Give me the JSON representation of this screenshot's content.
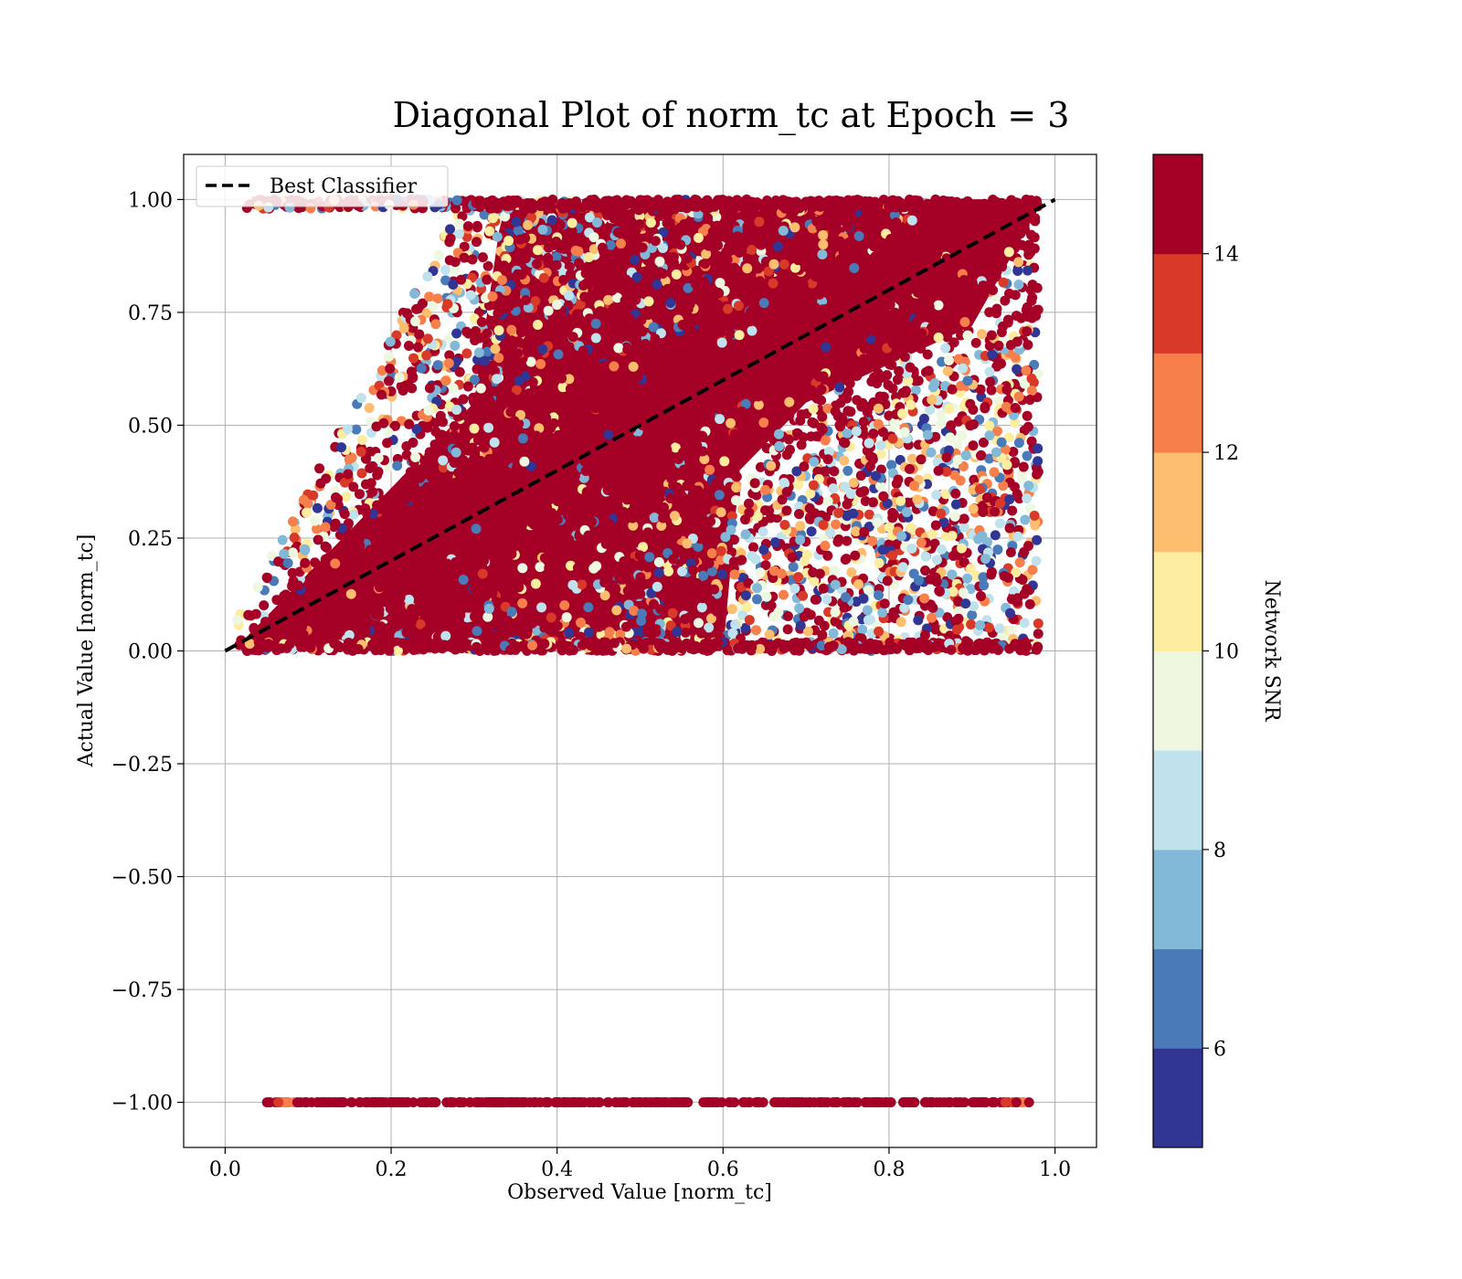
{
  "chart_data": {
    "type": "scatter",
    "title": "Diagonal Plot of norm_tc at Epoch = 3",
    "xlabel": "Observed Value [norm_tc]",
    "ylabel": "Actual Value [norm_tc]",
    "xlim": [
      -0.05,
      1.05
    ],
    "ylim": [
      -1.1,
      1.1
    ],
    "xticks": [
      0.0,
      0.2,
      0.4,
      0.6,
      0.8,
      1.0
    ],
    "xtick_labels": [
      "0.0",
      "0.2",
      "0.4",
      "0.6",
      "0.8",
      "1.0"
    ],
    "yticks": [
      1.0,
      0.75,
      0.5,
      0.25,
      0.0,
      -0.25,
      -0.5,
      -0.75,
      -1.0
    ],
    "ytick_labels": [
      "1.00",
      "0.75",
      "0.50",
      "0.25",
      "0.00",
      "−0.25",
      "−0.50",
      "−0.75",
      "−1.00"
    ],
    "grid": true,
    "legend": {
      "placement": "upper-left",
      "entries": [
        {
          "label": "Best Classifier",
          "style": "dashed",
          "color": "#000000"
        }
      ]
    },
    "reference_line": {
      "label": "Best Classifier",
      "x": [
        0.0,
        1.0
      ],
      "y": [
        0.0,
        1.0
      ]
    },
    "scatter_regions": {
      "main_band": {
        "x_range": [
          0.01,
          0.98
        ],
        "y_range": [
          0.0,
          1.0
        ]
      },
      "invalid_row": {
        "y": -1.0,
        "x_range": [
          0.05,
          0.97
        ]
      }
    },
    "colorbar": {
      "label": "Network SNR",
      "range": [
        5,
        15
      ],
      "ticks": [
        6,
        8,
        10,
        12,
        14
      ],
      "tick_labels": [
        "6",
        "8",
        "10",
        "12",
        "14"
      ],
      "colors": [
        "#313695",
        "#4a7ab7",
        "#83b9d8",
        "#bfe2ec",
        "#eef7e0",
        "#fdeda1",
        "#fdbe70",
        "#f67f4b",
        "#d93929",
        "#a50026"
      ]
    }
  }
}
